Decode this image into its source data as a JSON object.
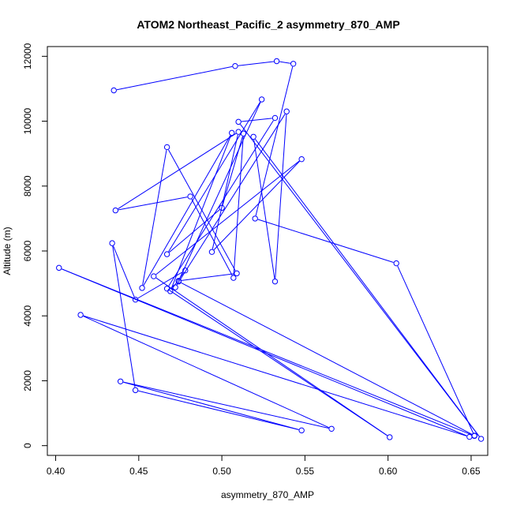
{
  "chart_data": {
    "type": "line",
    "title": "ATOM2 Northeast_Pacific_2 asymmetry_870_AMP",
    "xlabel": "asymmetry_870_AMP",
    "ylabel": "Altitude (m)",
    "xlim": [
      0.395,
      0.66
    ],
    "ylim": [
      -300,
      12300
    ],
    "x_ticks": [
      "0.40",
      "0.45",
      "0.50",
      "0.55",
      "0.60",
      "0.65"
    ],
    "y_ticks": [
      "0",
      "2000",
      "4000",
      "6000",
      "8000",
      "10000",
      "12000"
    ],
    "line_color": "#0000ff",
    "marker": "open-circle",
    "series": [
      {
        "points": [
          [
            0.435,
            10950
          ],
          [
            0.508,
            11700
          ],
          [
            0.533,
            11850
          ],
          [
            0.543,
            11770
          ],
          [
            0.52,
            7000
          ],
          [
            0.605,
            5620
          ],
          [
            0.652,
            300
          ],
          [
            0.402,
            5480
          ],
          [
            0.649,
            270
          ],
          [
            0.415,
            4030
          ],
          [
            0.566,
            520
          ],
          [
            0.439,
            1980
          ],
          [
            0.548,
            470
          ],
          [
            0.448,
            1710
          ],
          [
            0.434,
            6240
          ],
          [
            0.448,
            4500
          ],
          [
            0.478,
            5400
          ],
          [
            0.469,
            4760
          ],
          [
            0.506,
            9640
          ],
          [
            0.452,
            4860
          ],
          [
            0.467,
            9200
          ],
          [
            0.509,
            5310
          ],
          [
            0.474,
            5080
          ],
          [
            0.524,
            10670
          ],
          [
            0.467,
            5900
          ],
          [
            0.5,
            7330
          ],
          [
            0.513,
            9620
          ],
          [
            0.507,
            5170
          ],
          [
            0.481,
            7680
          ],
          [
            0.436,
            7250
          ],
          [
            0.51,
            9670
          ],
          [
            0.494,
            5970
          ],
          [
            0.548,
            8830
          ],
          [
            0.459,
            5220
          ],
          [
            0.601,
            260
          ],
          [
            0.467,
            4840
          ],
          [
            0.532,
            10100
          ],
          [
            0.51,
            9980
          ],
          [
            0.656,
            210
          ],
          [
            0.519,
            9520
          ],
          [
            0.532,
            5060
          ],
          [
            0.539,
            10300
          ],
          [
            0.472,
            4880
          ],
          [
            0.474,
            5060
          ],
          [
            0.652,
            310
          ]
        ]
      }
    ]
  }
}
